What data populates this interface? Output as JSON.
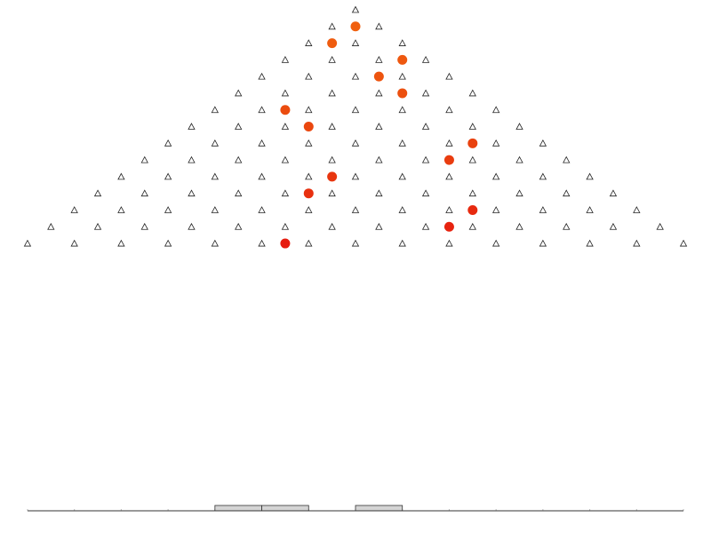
{
  "board": {
    "pegs": {
      "rows": 15
    },
    "balls": [
      {
        "row": 1,
        "offset": 0,
        "color": "#f0600f"
      },
      {
        "row": 2,
        "offset": -1,
        "color": "#ef5c0f"
      },
      {
        "row": 3,
        "offset": 2,
        "color": "#ee580f"
      },
      {
        "row": 4,
        "offset": 1,
        "color": "#ed540f"
      },
      {
        "row": 5,
        "offset": 2,
        "color": "#ec500f"
      },
      {
        "row": 6,
        "offset": -3,
        "color": "#eb4c0f"
      },
      {
        "row": 7,
        "offset": -2,
        "color": "#ea470f"
      },
      {
        "row": 8,
        "offset": 5,
        "color": "#e9420f"
      },
      {
        "row": 9,
        "offset": 4,
        "color": "#e93c0f"
      },
      {
        "row": 10,
        "offset": -1,
        "color": "#e8360f"
      },
      {
        "row": 11,
        "offset": -2,
        "color": "#e8300f"
      },
      {
        "row": 12,
        "offset": 5,
        "color": "#e72a0f"
      },
      {
        "row": 13,
        "offset": 4,
        "color": "#e7230f"
      },
      {
        "row": 14,
        "offset": -3,
        "color": "#e61c0f"
      }
    ],
    "histogram": {
      "counts": [
        0,
        0,
        0,
        0,
        1,
        1,
        0,
        1,
        0,
        0,
        0,
        0,
        0,
        0
      ],
      "color": "#d4d4d4"
    }
  }
}
